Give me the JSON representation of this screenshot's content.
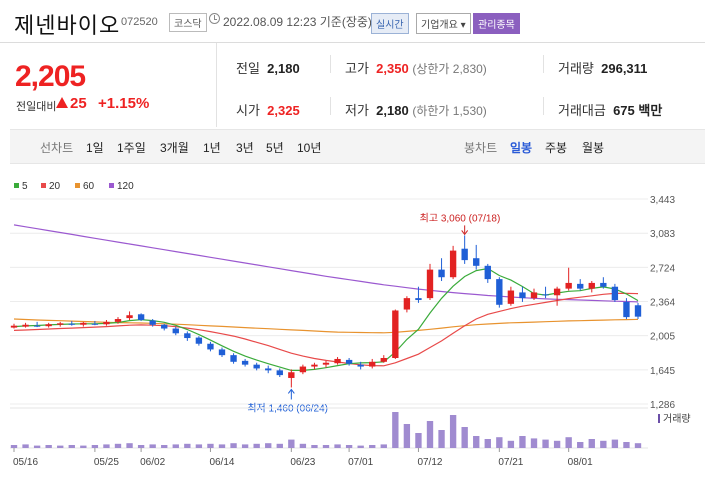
{
  "header": {
    "name": "제넨바이오",
    "code": "072520",
    "market": "코스닥",
    "datetime": "2022.08.09 12:23 기준(장중)",
    "badge_realtime": "실시간",
    "badge_overview": "기업개요 ▾",
    "badge_managed": "관리종목"
  },
  "quote": {
    "price": "2,205",
    "change_label": "전일대비",
    "change": "25",
    "change_pct": "+1.15%",
    "prev_label": "전일",
    "prev": "2,180",
    "high_label": "고가",
    "high": "2,350",
    "upper_limit": "(상한가 2,830)",
    "volume_label": "거래량",
    "volume": "296,311",
    "open_label": "시가",
    "open": "2,325",
    "low_label": "저가",
    "low": "2,180",
    "lower_limit": "(하한가 1,530)",
    "amount_label": "거래대금",
    "amount": "675 백만",
    "up_color": "#e22222"
  },
  "tabs": {
    "line_label": "선차트",
    "periods": [
      "1일",
      "1주일",
      "3개월",
      "1년",
      "3년",
      "5년",
      "10년"
    ],
    "candle_label": "봉차트",
    "candles": [
      "일봉",
      "주봉",
      "월봉"
    ],
    "candle_selected": "일봉"
  },
  "chart_data": {
    "type": "candlestick",
    "legend": [
      {
        "name": "5",
        "color": "#3aab3a"
      },
      {
        "name": "20",
        "color": "#e84a4a"
      },
      {
        "name": "60",
        "color": "#e8932f"
      },
      {
        "name": "120",
        "color": "#9b59d0"
      }
    ],
    "y_ticks": [
      1286,
      1645,
      2005,
      2364,
      2724,
      3083,
      3443
    ],
    "y_tick_labels": [
      "1,286",
      "1,645",
      "2,005",
      "2,364",
      "2,724",
      "3,083",
      "3,443"
    ],
    "ylim": [
      1286,
      3443
    ],
    "x_tick_labels": [
      {
        "i": 0,
        "label": "05/16"
      },
      {
        "i": 7,
        "label": "05/25"
      },
      {
        "i": 11,
        "label": "06/02"
      },
      {
        "i": 17,
        "label": "06/14"
      },
      {
        "i": 24,
        "label": "06/23"
      },
      {
        "i": 29,
        "label": "07/01"
      },
      {
        "i": 35,
        "label": "07/12"
      },
      {
        "i": 42,
        "label": "07/21"
      },
      {
        "i": 48,
        "label": "08/01"
      }
    ],
    "high_annotation": "최고 3,060 (07/18)",
    "low_annotation": "최저 1,460 (06/24)",
    "high_index": 39,
    "low_index": 24,
    "volume_label": "거래량",
    "ohlc": [
      [
        2090,
        2130,
        2080,
        2110
      ],
      [
        2100,
        2140,
        2090,
        2120
      ],
      [
        2110,
        2150,
        2095,
        2105
      ],
      [
        2105,
        2140,
        2090,
        2125
      ],
      [
        2120,
        2150,
        2100,
        2135
      ],
      [
        2130,
        2160,
        2110,
        2120
      ],
      [
        2120,
        2150,
        2100,
        2140
      ],
      [
        2130,
        2160,
        2115,
        2125
      ],
      [
        2125,
        2170,
        2110,
        2150
      ],
      [
        2150,
        2200,
        2130,
        2180
      ],
      [
        2190,
        2260,
        2170,
        2220
      ],
      [
        2230,
        2240,
        2160,
        2170
      ],
      [
        2165,
        2180,
        2100,
        2120
      ],
      [
        2120,
        2130,
        2060,
        2080
      ],
      [
        2080,
        2100,
        2010,
        2030
      ],
      [
        2030,
        2050,
        1950,
        1980
      ],
      [
        1985,
        2000,
        1900,
        1920
      ],
      [
        1920,
        1940,
        1840,
        1860
      ],
      [
        1860,
        1880,
        1780,
        1800
      ],
      [
        1800,
        1820,
        1710,
        1730
      ],
      [
        1740,
        1760,
        1680,
        1700
      ],
      [
        1700,
        1720,
        1640,
        1660
      ],
      [
        1660,
        1690,
        1610,
        1640
      ],
      [
        1640,
        1660,
        1570,
        1590
      ],
      [
        1560,
        1650,
        1460,
        1620
      ],
      [
        1620,
        1700,
        1600,
        1680
      ],
      [
        1680,
        1720,
        1650,
        1700
      ],
      [
        1700,
        1740,
        1670,
        1720
      ],
      [
        1715,
        1780,
        1700,
        1760
      ],
      [
        1750,
        1770,
        1690,
        1710
      ],
      [
        1700,
        1730,
        1650,
        1680
      ],
      [
        1680,
        1760,
        1660,
        1730
      ],
      [
        1730,
        1800,
        1720,
        1770
      ],
      [
        1770,
        2280,
        1760,
        2270
      ],
      [
        2280,
        2420,
        2250,
        2400
      ],
      [
        2400,
        2520,
        2350,
        2380
      ],
      [
        2400,
        2760,
        2380,
        2700
      ],
      [
        2700,
        2820,
        2580,
        2620
      ],
      [
        2620,
        2950,
        2600,
        2900
      ],
      [
        2920,
        3060,
        2760,
        2800
      ],
      [
        2820,
        2960,
        2700,
        2740
      ],
      [
        2740,
        2760,
        2560,
        2600
      ],
      [
        2600,
        2620,
        2300,
        2330
      ],
      [
        2340,
        2520,
        2320,
        2480
      ],
      [
        2460,
        2520,
        2360,
        2400
      ],
      [
        2400,
        2500,
        2380,
        2460
      ],
      [
        2440,
        2520,
        2400,
        2430
      ],
      [
        2430,
        2520,
        2320,
        2500
      ],
      [
        2500,
        2720,
        2480,
        2560
      ],
      [
        2550,
        2600,
        2480,
        2500
      ],
      [
        2500,
        2580,
        2460,
        2560
      ],
      [
        2560,
        2620,
        2500,
        2520
      ],
      [
        2520,
        2550,
        2360,
        2380
      ],
      [
        2360,
        2400,
        2180,
        2200
      ],
      [
        2325,
        2350,
        2180,
        2205
      ]
    ],
    "volume": [
      5,
      6,
      4,
      5,
      4,
      5,
      4,
      5,
      6,
      7,
      8,
      5,
      6,
      5,
      6,
      7,
      6,
      7,
      6,
      8,
      6,
      7,
      8,
      7,
      14,
      7,
      5,
      5,
      6,
      5,
      4,
      5,
      6,
      60,
      40,
      25,
      45,
      30,
      55,
      35,
      20,
      15,
      18,
      12,
      20,
      16,
      14,
      12,
      18,
      10,
      15,
      12,
      14,
      10,
      8
    ],
    "ma5": [
      2100,
      2108,
      2112,
      2118,
      2124,
      2128,
      2130,
      2130,
      2134,
      2144,
      2164,
      2174,
      2164,
      2146,
      2114,
      2070,
      2016,
      1958,
      1898,
      1840,
      1790,
      1748,
      1710,
      1674,
      1640,
      1640,
      1650,
      1668,
      1690,
      1710,
      1718,
      1722,
      1730,
      1832,
      1966,
      2072,
      2244,
      2398,
      2526,
      2628,
      2690,
      2712,
      2638,
      2590,
      2522,
      2448,
      2432,
      2454,
      2472,
      2478,
      2502,
      2518,
      2496,
      2444,
      2374
    ],
    "ma20": [
      2060,
      2065,
      2070,
      2075,
      2080,
      2085,
      2090,
      2095,
      2100,
      2108,
      2115,
      2118,
      2115,
      2110,
      2100,
      2085,
      2068,
      2048,
      2025,
      2000,
      1970,
      1935,
      1900,
      1860,
      1820,
      1790,
      1765,
      1745,
      1728,
      1712,
      1698,
      1690,
      1688,
      1720,
      1765,
      1810,
      1880,
      1950,
      2030,
      2110,
      2180,
      2230,
      2260,
      2290,
      2315,
      2335,
      2355,
      2375,
      2395,
      2410,
      2425,
      2440,
      2450,
      2450,
      2448
    ],
    "ma60": [
      2180,
      2175,
      2170,
      2166,
      2162,
      2158,
      2154,
      2150,
      2146,
      2142,
      2140,
      2138,
      2135,
      2130,
      2126,
      2120,
      2114,
      2108,
      2102,
      2096,
      2090,
      2084,
      2078,
      2072,
      2066,
      2060,
      2054,
      2048,
      2043,
      2040,
      2038,
      2036,
      2035,
      2040,
      2050,
      2060,
      2072,
      2085,
      2098,
      2110,
      2120,
      2128,
      2134,
      2140,
      2144,
      2148,
      2152,
      2156,
      2160,
      2163,
      2166,
      2169,
      2172,
      2174,
      2176
    ],
    "ma120": [
      3170,
      3150,
      3130,
      3110,
      3090,
      3070,
      3050,
      3030,
      3010,
      2990,
      2970,
      2950,
      2930,
      2910,
      2890,
      2870,
      2850,
      2830,
      2810,
      2790,
      2770,
      2750,
      2730,
      2710,
      2690,
      2670,
      2650,
      2630,
      2612,
      2594,
      2576,
      2558,
      2540,
      2525,
      2510,
      2495,
      2482,
      2470,
      2458,
      2448,
      2438,
      2428,
      2420,
      2412,
      2405,
      2398,
      2392,
      2388,
      2384,
      2380,
      2376,
      2372,
      2368,
      2364,
      2360
    ]
  }
}
